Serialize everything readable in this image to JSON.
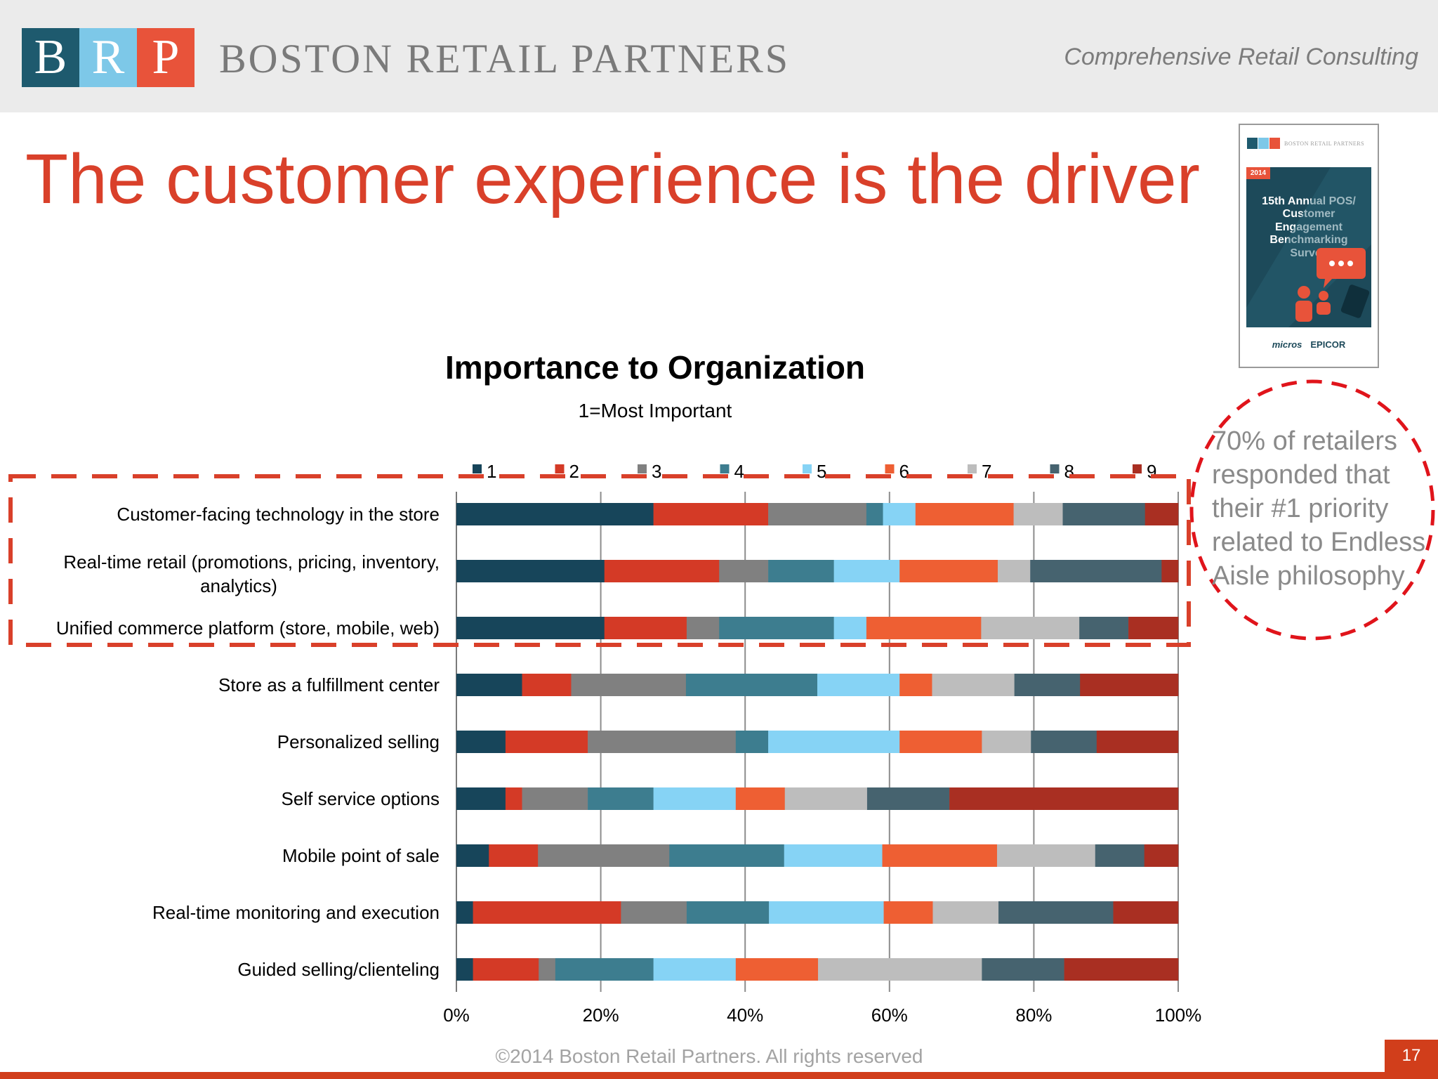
{
  "header": {
    "logo_letters": [
      "B",
      "R",
      "P"
    ],
    "logo_colors": [
      "#1e5a6e",
      "#7dc8e8",
      "#e8533a"
    ],
    "brand_name": "BOSTON RETAIL PARTNERS",
    "tagline": "Comprehensive Retail Consulting"
  },
  "title": "The customer experience is the driver",
  "cover": {
    "brand": "BOSTON RETAIL PARTNERS",
    "year": "2014",
    "title": "15th Annual POS/ Customer Engagement Benchmarking Survey",
    "logo_left": "micros",
    "logo_right": "EPICOR"
  },
  "note": {
    "lines": [
      "70% of retailers",
      "responded that",
      "their #1 priority",
      "related to Endless",
      "Aisle philosophy"
    ],
    "highlight_color": "#e0141b"
  },
  "chart_data": {
    "type": "bar",
    "orientation": "horizontal",
    "stacked": "percent",
    "title": "Importance to Organization",
    "subtitle": "1=Most Important",
    "categories": [
      "Customer-facing technology in the store",
      "Real-time retail (promotions, pricing, inventory, analytics)",
      "Unified commerce platform (store, mobile, web)",
      "Store as a fulfillment center",
      "Personalized selling",
      "Self service options",
      "Mobile point of sale",
      "Real-time monitoring and execution",
      "Guided selling/clienteling"
    ],
    "series": [
      {
        "name": "1",
        "color": "#17455a",
        "values": [
          27.3,
          20.5,
          20.5,
          9.1,
          6.8,
          6.8,
          4.5,
          2.3,
          2.3
        ]
      },
      {
        "name": "2",
        "color": "#d43a26",
        "values": [
          15.9,
          15.9,
          11.4,
          6.8,
          11.4,
          2.3,
          6.8,
          20.5,
          9.1
        ]
      },
      {
        "name": "3",
        "color": "#808080",
        "values": [
          13.6,
          6.8,
          4.5,
          15.9,
          20.5,
          9.1,
          18.2,
          9.1,
          2.3
        ]
      },
      {
        "name": "4",
        "color": "#3d7d8f",
        "values": [
          2.3,
          9.1,
          15.9,
          18.2,
          4.5,
          9.1,
          15.9,
          11.4,
          13.6
        ]
      },
      {
        "name": "5",
        "color": "#86d3f5",
        "values": [
          4.5,
          9.1,
          4.5,
          11.4,
          18.2,
          11.4,
          13.6,
          15.9,
          11.4
        ]
      },
      {
        "name": "6",
        "color": "#ee5f33",
        "values": [
          13.6,
          13.6,
          15.9,
          4.5,
          11.4,
          6.8,
          15.9,
          6.8,
          11.4
        ]
      },
      {
        "name": "7",
        "color": "#bdbdbd",
        "values": [
          6.8,
          4.5,
          13.6,
          11.4,
          6.8,
          11.4,
          13.6,
          9.1,
          22.7
        ]
      },
      {
        "name": "8",
        "color": "#46636f",
        "values": [
          11.4,
          18.2,
          6.8,
          9.1,
          9.1,
          11.4,
          6.8,
          15.9,
          11.4
        ]
      },
      {
        "name": "9",
        "color": "#a92f22",
        "values": [
          4.6,
          2.3,
          6.9,
          13.6,
          11.3,
          31.7,
          4.7,
          9.0,
          15.8
        ]
      }
    ],
    "xlim": [
      0,
      100
    ],
    "x_ticks": [
      "0%",
      "20%",
      "40%",
      "60%",
      "80%",
      "100%"
    ],
    "grid": true,
    "legend_position": "top",
    "highlight_rows": [
      0,
      1,
      2
    ],
    "highlight_color": "#d9402a"
  },
  "footer": {
    "copyright": "©2014 Boston Retail Partners. All rights reserved",
    "page_number": "17"
  }
}
